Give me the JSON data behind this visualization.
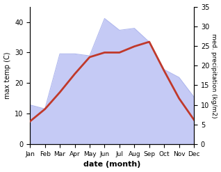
{
  "months": [
    "Jan",
    "Feb",
    "Mar",
    "Apr",
    "May",
    "Jun",
    "Jul",
    "Aug",
    "Sep",
    "Oct",
    "Nov",
    "Dec"
  ],
  "month_indices": [
    1,
    2,
    3,
    4,
    5,
    6,
    7,
    8,
    9,
    10,
    11,
    12
  ],
  "temp_max": [
    7.5,
    11.5,
    17.0,
    23.0,
    28.5,
    30.0,
    30.0,
    32.0,
    33.5,
    24.0,
    15.0,
    8.0
  ],
  "precip": [
    10.0,
    9.0,
    23.0,
    23.0,
    22.5,
    32.0,
    29.0,
    29.5,
    26.0,
    19.0,
    17.0,
    12.0
  ],
  "temp_color": "#c0392b",
  "precip_fill_color": "#c5caf5",
  "precip_edge_color": "#b0b8ee",
  "left_ylabel": "max temp (C)",
  "right_ylabel": "med. precipitation (kg/m2)",
  "xlabel": "date (month)",
  "left_ylim": [
    0,
    45
  ],
  "right_ylim": [
    0,
    35
  ],
  "left_yticks": [
    0,
    10,
    20,
    30,
    40
  ],
  "right_yticks": [
    0,
    5,
    10,
    15,
    20,
    25,
    30,
    35
  ],
  "temp_linewidth": 2.0,
  "fig_width": 3.18,
  "fig_height": 2.47,
  "dpi": 100
}
